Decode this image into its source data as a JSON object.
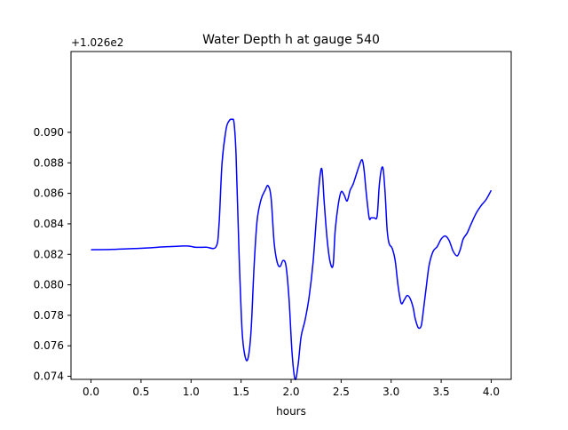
{
  "chart_data": {
    "type": "line",
    "title": "Water Depth h at gauge 540",
    "xlabel": "hours",
    "ylabel": "",
    "y_offset_label": "+1.026e2",
    "xlim": [
      -0.2,
      4.2
    ],
    "ylim": [
      0.0738,
      0.0953
    ],
    "xticks": [
      0.0,
      0.5,
      1.0,
      1.5,
      2.0,
      2.5,
      3.0,
      3.5,
      4.0
    ],
    "xtick_labels": [
      "0.0",
      "0.5",
      "1.0",
      "1.5",
      "2.0",
      "2.5",
      "3.0",
      "3.5",
      "4.0"
    ],
    "yticks": [
      0.074,
      0.076,
      0.078,
      0.08,
      0.082,
      0.084,
      0.086,
      0.088,
      0.09
    ],
    "ytick_labels": [
      "0.074",
      "0.076",
      "0.078",
      "0.080",
      "0.082",
      "0.084",
      "0.086",
      "0.088",
      "0.090"
    ],
    "grid": false,
    "series": [
      {
        "color": "#0000ff",
        "x": [
          0.0,
          0.2,
          0.4,
          0.6,
          0.7,
          0.8,
          0.9,
          0.96,
          1.0,
          1.05,
          1.15,
          1.25,
          1.28,
          1.31,
          1.35,
          1.38,
          1.41,
          1.43,
          1.45,
          1.48,
          1.51,
          1.54,
          1.57,
          1.6,
          1.63,
          1.66,
          1.7,
          1.74,
          1.77,
          1.8,
          1.83,
          1.86,
          1.89,
          1.92,
          1.95,
          1.98,
          2.01,
          2.04,
          2.07,
          2.1,
          2.14,
          2.18,
          2.22,
          2.26,
          2.29,
          2.31,
          2.33,
          2.36,
          2.39,
          2.42,
          2.44,
          2.47,
          2.5,
          2.53,
          2.56,
          2.59,
          2.62,
          2.65,
          2.68,
          2.71,
          2.73,
          2.75,
          2.78,
          2.8,
          2.83,
          2.86,
          2.88,
          2.9,
          2.92,
          2.94,
          2.96,
          2.98,
          3.01,
          3.04,
          3.07,
          3.1,
          3.13,
          3.16,
          3.19,
          3.22,
          3.24,
          3.27,
          3.3,
          3.32,
          3.35,
          3.38,
          3.42,
          3.46,
          3.5,
          3.54,
          3.58,
          3.62,
          3.66,
          3.69,
          3.72,
          3.76,
          3.8,
          3.85,
          3.9,
          3.95,
          4.0
        ],
        "y": [
          0.0823,
          0.08232,
          0.08237,
          0.08243,
          0.08248,
          0.08251,
          0.08254,
          0.08255,
          0.08252,
          0.08246,
          0.08247,
          0.0825,
          0.084,
          0.088,
          0.0902,
          0.09075,
          0.09085,
          0.0906,
          0.0885,
          0.082,
          0.077,
          0.0753,
          0.0752,
          0.077,
          0.0812,
          0.0842,
          0.0856,
          0.0862,
          0.0865,
          0.0857,
          0.0828,
          0.0815,
          0.0812,
          0.0816,
          0.0812,
          0.079,
          0.0755,
          0.0738,
          0.07475,
          0.0766,
          0.0777,
          0.0792,
          0.0815,
          0.085,
          0.0872,
          0.0875,
          0.0855,
          0.083,
          0.0815,
          0.0813,
          0.0835,
          0.0852,
          0.0861,
          0.0859,
          0.0855,
          0.0862,
          0.0866,
          0.0872,
          0.0878,
          0.0882,
          0.0875,
          0.0861,
          0.0844,
          0.0844,
          0.0844,
          0.0845,
          0.0864,
          0.0875,
          0.0876,
          0.086,
          0.0836,
          0.0827,
          0.0824,
          0.0816,
          0.0799,
          0.0788,
          0.079,
          0.0793,
          0.0791,
          0.0785,
          0.0778,
          0.0772,
          0.0773,
          0.0782,
          0.0798,
          0.0813,
          0.0822,
          0.0825,
          0.083,
          0.0832,
          0.0829,
          0.0822,
          0.0819,
          0.0823,
          0.083,
          0.0834,
          0.084,
          0.0847,
          0.0852,
          0.0856,
          0.0862
        ]
      }
    ]
  }
}
